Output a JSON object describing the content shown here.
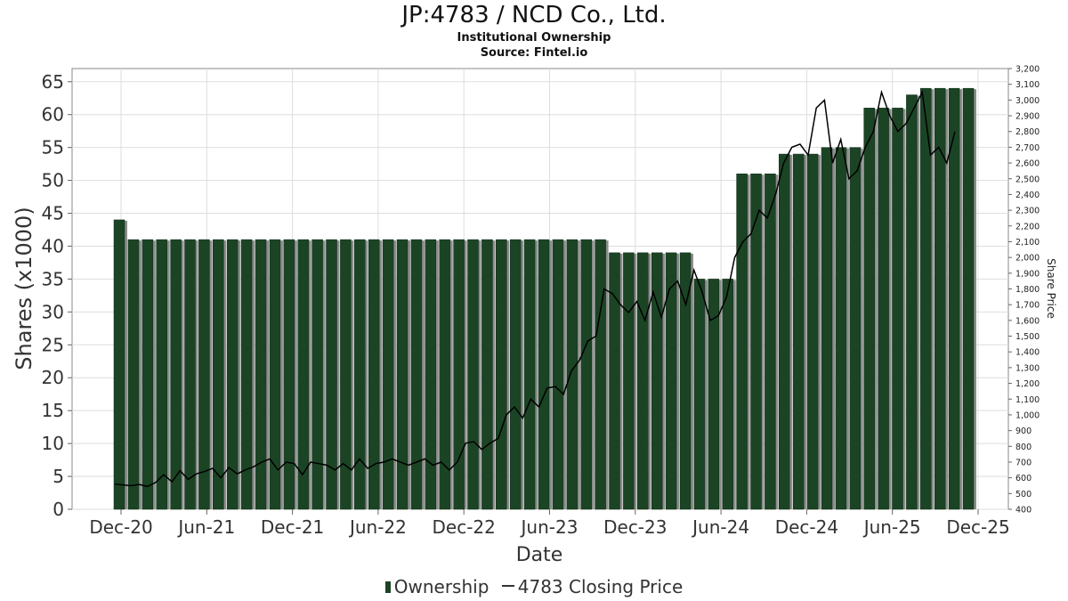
{
  "title": "JP:4783 / NCD Co., Ltd.",
  "subtitle": "Institutional Ownership",
  "source": "Source: Fintel.io",
  "legend": {
    "ownership": "Ownership",
    "price": "4783 Closing Price"
  },
  "colors": {
    "bar": "#1b4425",
    "bar_side": "#8c8c8c",
    "line": "#000000",
    "grid": "#dddddd"
  },
  "chart_data": {
    "type": "bar",
    "xlabel": "Date",
    "ylabel": "Shares (x1000)",
    "y2label": "Share Price",
    "ylim": [
      0,
      67
    ],
    "y2lim": [
      400,
      3200
    ],
    "yticks": [
      "0",
      "5",
      "10",
      "15",
      "20",
      "25",
      "30",
      "35",
      "40",
      "45",
      "50",
      "55",
      "60",
      "65"
    ],
    "y2ticks": [
      "400",
      "500",
      "600",
      "700",
      "800",
      "900",
      "1,000",
      "1,100",
      "1,200",
      "1,300",
      "1,400",
      "1,500",
      "1,600",
      "1,700",
      "1,800",
      "1,900",
      "2,000",
      "2,100",
      "2,200",
      "2,300",
      "2,400",
      "2,500",
      "2,600",
      "2,700",
      "2,800",
      "2,900",
      "3,000",
      "3,100",
      "3,200"
    ],
    "xticks": [
      "Dec-20",
      "Jun-21",
      "Dec-21",
      "Jun-22",
      "Dec-22",
      "Jun-23",
      "Dec-23",
      "Jun-24",
      "Dec-24",
      "Jun-25",
      "Dec-25"
    ],
    "grid": true,
    "series": [
      {
        "name": "Ownership",
        "values": [
          44,
          41,
          41,
          41,
          41,
          41,
          41,
          41,
          41,
          41,
          41,
          41,
          41,
          41,
          41,
          41,
          41,
          41,
          41,
          41,
          41,
          41,
          41,
          41,
          41,
          41,
          41,
          41,
          41,
          41,
          41,
          41,
          41,
          41,
          41,
          39,
          39,
          39,
          39,
          39,
          39,
          35,
          35,
          35,
          51,
          51,
          51,
          54,
          54,
          54,
          55,
          55,
          55,
          61,
          61,
          61,
          63,
          64,
          64,
          64,
          64
        ]
      },
      {
        "name": "4783 Closing Price",
        "values": [
          560,
          555,
          550,
          558,
          545,
          570,
          620,
          575,
          645,
          590,
          625,
          640,
          660,
          600,
          665,
          625,
          650,
          670,
          700,
          720,
          650,
          700,
          690,
          620,
          700,
          690,
          680,
          650,
          690,
          650,
          720,
          660,
          690,
          700,
          720,
          700,
          680,
          700,
          720,
          680,
          700,
          650,
          700,
          820,
          830,
          780,
          820,
          850,
          1000,
          1050,
          980,
          1100,
          1050,
          1170,
          1180,
          1130,
          1280,
          1350,
          1470,
          1500,
          1800,
          1770,
          1700,
          1650,
          1720,
          1600,
          1780,
          1620,
          1800,
          1850,
          1700,
          1920,
          1780,
          1600,
          1630,
          1750,
          2000,
          2100,
          2150,
          2300,
          2250,
          2400,
          2600,
          2700,
          2720,
          2650,
          2950,
          3000,
          2600,
          2750,
          2500,
          2550,
          2700,
          2800,
          3050,
          2900,
          2800,
          2850,
          2950,
          3050,
          2650,
          2700,
          2600,
          2800
        ]
      }
    ]
  }
}
